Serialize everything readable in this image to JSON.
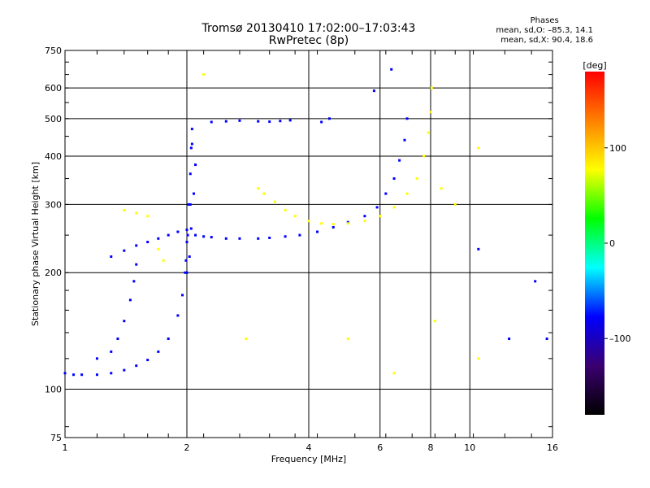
{
  "header": {
    "title": "Tromsø 20130410 17:02:00–17:03:43",
    "subtitle": "RwPretec (8p)",
    "phase_title": "Phases",
    "phase_o": "mean, sd,O: –85.3, 14.1",
    "phase_x": "mean, sd,X: 90.4, 18.6"
  },
  "colorbar": {
    "unit_label": "[deg]",
    "ticks": [
      {
        "value": 100,
        "label": "100"
      },
      {
        "value": 0,
        "label": "0"
      },
      {
        "value": -100,
        "label": "–100"
      }
    ],
    "range": [
      -180,
      180
    ],
    "colors": [
      "#000000",
      "#3a0070",
      "#0000ff",
      "#00ffff",
      "#00ff00",
      "#ffff00",
      "#ff8000",
      "#ff0000"
    ]
  },
  "chart_data": {
    "type": "scatter",
    "title": "Tromsø 20130410 17:02:00–17:03:43",
    "subtitle": "RwPretec (8p)",
    "xlabel": "Frequency [MHz]",
    "ylabel": "Stationary phase Virtual Height [km]",
    "xscale": "log",
    "yscale": "log",
    "xlim": [
      1,
      16
    ],
    "ylim": [
      75,
      750
    ],
    "xticks": [
      1,
      2,
      4,
      6,
      8,
      10,
      16
    ],
    "xtick_labels": [
      "1",
      "2",
      "4",
      "6",
      "8",
      "10",
      "16"
    ],
    "yticks": [
      75,
      100,
      200,
      300,
      400,
      500,
      600,
      750
    ],
    "ytick_labels": [
      "75",
      "100",
      "200",
      "300",
      "400",
      "500",
      "600",
      "750"
    ],
    "grid": true,
    "traces": [
      {
        "phase": -100,
        "points": [
          [
            1.0,
            110
          ],
          [
            1.05,
            109
          ],
          [
            1.1,
            109
          ],
          [
            1.2,
            109
          ],
          [
            1.3,
            110
          ],
          [
            1.4,
            112
          ],
          [
            1.5,
            115
          ],
          [
            1.6,
            119
          ],
          [
            1.7,
            125
          ],
          [
            1.8,
            135
          ],
          [
            1.9,
            155
          ],
          [
            1.95,
            175
          ],
          [
            1.98,
            200
          ],
          [
            2.0,
            240
          ],
          [
            2.02,
            300
          ],
          [
            2.04,
            360
          ],
          [
            2.05,
            420
          ],
          [
            2.06,
            470
          ]
        ]
      },
      {
        "phase": -100,
        "points": [
          [
            1.2,
            120
          ],
          [
            1.3,
            125
          ],
          [
            1.35,
            135
          ],
          [
            1.4,
            150
          ],
          [
            1.45,
            170
          ],
          [
            1.48,
            190
          ],
          [
            1.5,
            210
          ]
        ]
      },
      {
        "phase": -100,
        "points": [
          [
            1.3,
            220
          ],
          [
            1.4,
            228
          ],
          [
            1.5,
            235
          ],
          [
            1.6,
            240
          ],
          [
            1.7,
            245
          ],
          [
            1.8,
            250
          ],
          [
            1.9,
            255
          ],
          [
            2.0,
            258
          ],
          [
            2.1,
            250
          ],
          [
            2.2,
            248
          ],
          [
            2.3,
            247
          ],
          [
            2.5,
            245
          ],
          [
            2.7,
            245
          ]
        ]
      },
      {
        "phase": -100,
        "points": [
          [
            2.3,
            490
          ],
          [
            2.5,
            492
          ],
          [
            2.7,
            494
          ],
          [
            3.0,
            492
          ],
          [
            3.2,
            491
          ],
          [
            3.4,
            493
          ],
          [
            3.6,
            495
          ]
        ]
      },
      {
        "phase": -100,
        "points": [
          [
            3.0,
            245
          ],
          [
            3.2,
            246
          ],
          [
            3.5,
            248
          ],
          [
            3.8,
            250
          ],
          [
            4.2,
            255
          ],
          [
            4.6,
            262
          ],
          [
            5.0,
            270
          ],
          [
            5.5,
            280
          ],
          [
            5.9,
            295
          ],
          [
            6.2,
            320
          ],
          [
            6.5,
            350
          ],
          [
            6.7,
            390
          ],
          [
            6.9,
            440
          ],
          [
            7.0,
            500
          ]
        ]
      },
      {
        "phase": 100,
        "points": [
          [
            3.0,
            330
          ],
          [
            3.1,
            320
          ],
          [
            3.3,
            305
          ],
          [
            3.5,
            290
          ],
          [
            3.7,
            280
          ],
          [
            4.0,
            272
          ],
          [
            4.3,
            268
          ],
          [
            4.6,
            267
          ],
          [
            5.0,
            268
          ],
          [
            5.5,
            272
          ],
          [
            6.0,
            280
          ],
          [
            6.5,
            295
          ],
          [
            7.0,
            320
          ],
          [
            7.4,
            350
          ],
          [
            7.7,
            400
          ],
          [
            7.9,
            460
          ],
          [
            8.0,
            520
          ],
          [
            8.05,
            600
          ]
        ]
      },
      {
        "phase": -100,
        "points": [
          [
            2.0,
            200
          ],
          [
            2.03,
            220
          ],
          [
            2.05,
            260
          ],
          [
            2.08,
            320
          ],
          [
            2.1,
            380
          ],
          [
            2.06,
            430
          ],
          [
            2.04,
            300
          ],
          [
            2.01,
            250
          ],
          [
            1.99,
            215
          ]
        ]
      },
      {
        "phase": 100,
        "points": [
          [
            1.4,
            290
          ],
          [
            1.5,
            285
          ],
          [
            1.6,
            280
          ],
          [
            2.8,
            135
          ],
          [
            1.7,
            230
          ],
          [
            1.75,
            215
          ]
        ]
      },
      {
        "phase": -100,
        "points": [
          [
            4.5,
            500
          ],
          [
            4.3,
            490
          ],
          [
            5.8,
            590
          ],
          [
            6.4,
            670
          ],
          [
            12.5,
            135
          ],
          [
            10.5,
            230
          ],
          [
            14.5,
            190
          ],
          [
            15.5,
            135
          ]
        ]
      },
      {
        "phase": 100,
        "points": [
          [
            8.5,
            330
          ],
          [
            9.2,
            300
          ],
          [
            10.5,
            420
          ],
          [
            6.5,
            110
          ],
          [
            2.2,
            650
          ],
          [
            5.0,
            135
          ],
          [
            8.2,
            150
          ],
          [
            10.5,
            120
          ]
        ]
      }
    ]
  }
}
